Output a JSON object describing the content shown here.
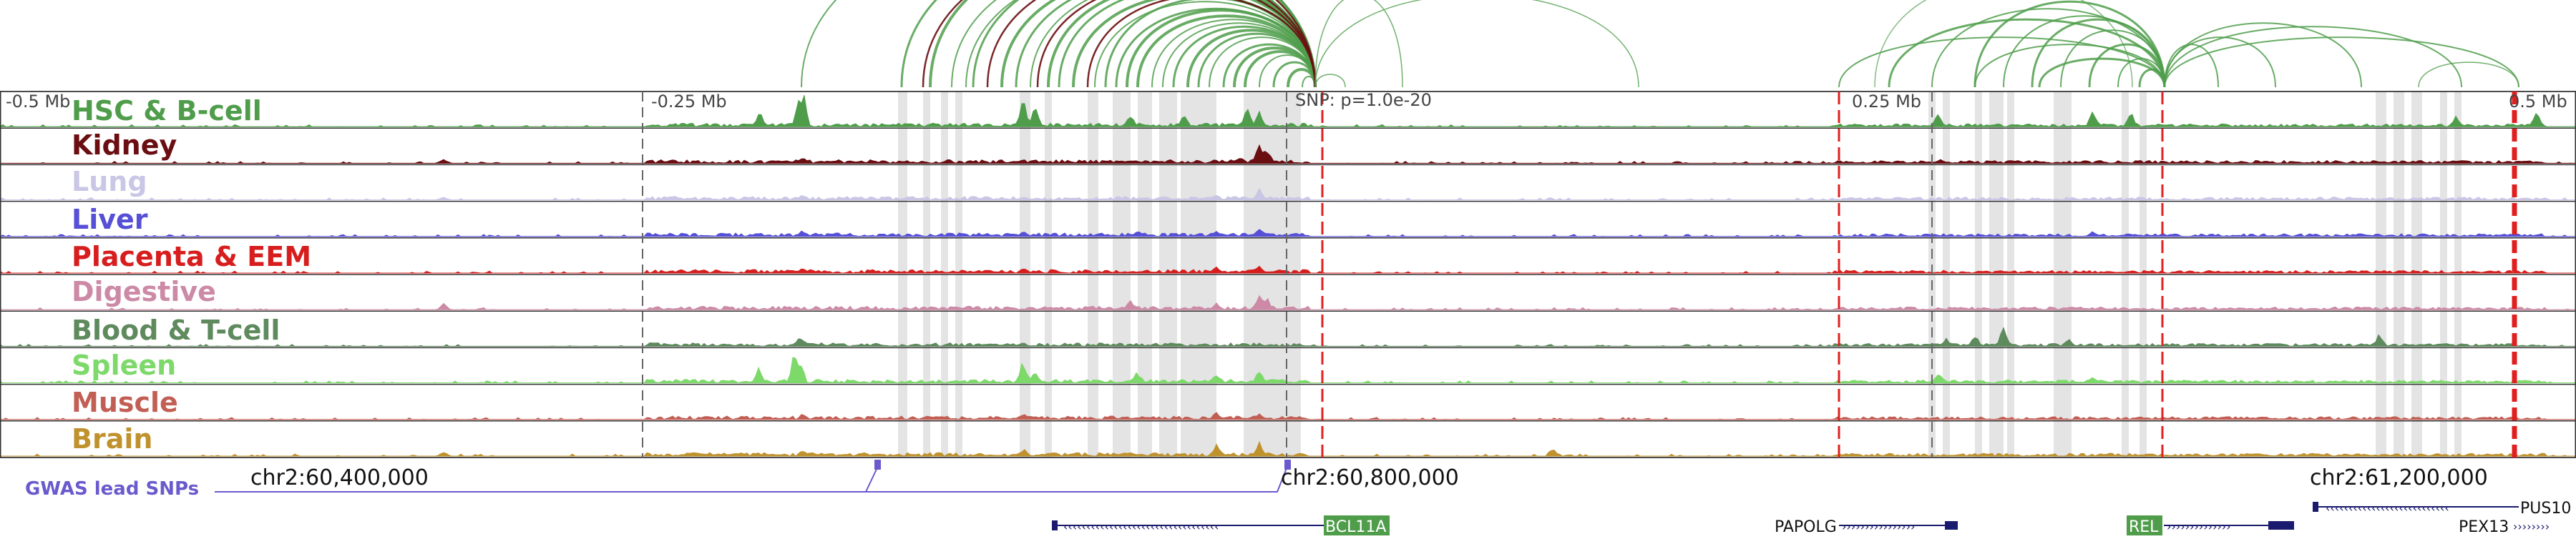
{
  "tracks": [
    {
      "label": "HSC & B-cell",
      "color": "#4f9d4b"
    },
    {
      "label": "Kidney",
      "color": "#6b0e12"
    },
    {
      "label": "Lung",
      "color": "#c9c6e6"
    },
    {
      "label": "Liver",
      "color": "#5650d6"
    },
    {
      "label": "Placenta & EEM",
      "color": "#d71d1d"
    },
    {
      "label": "Digestive",
      "color": "#cc8aa6"
    },
    {
      "label": "Blood & T-cell",
      "color": "#5e8a5e"
    },
    {
      "label": "Spleen",
      "color": "#7dd96a"
    },
    {
      "label": "Muscle",
      "color": "#c25f55"
    },
    {
      "label": "Brain",
      "color": "#c0922e"
    }
  ],
  "ruler": {
    "marks": [
      "-0.5 Mb",
      "-0.25 Mb",
      "0.25 Mb",
      "0.5 Mb"
    ],
    "snp": "SNP: p=1.0e-20"
  },
  "gwas_label": "GWAS lead SNPs",
  "coordinates": [
    "chr2:60,400,000",
    "chr2:60,800,000",
    "chr2:61,200,000"
  ],
  "genes": [
    {
      "name": "BCL11A",
      "highlighted": true,
      "strand": "-"
    },
    {
      "name": "PAPOLG",
      "highlighted": false,
      "strand": "+"
    },
    {
      "name": "REL",
      "highlighted": true,
      "strand": "+"
    },
    {
      "name": "PUS10",
      "highlighted": false,
      "strand": "-"
    },
    {
      "name": "PEX13",
      "highlighted": false,
      "strand": "+"
    }
  ],
  "colors": {
    "arc_main": "#4f9d4b",
    "arc_dark": "#6b0e12",
    "highlight": "#d8d8d8",
    "snp_line": "#e02020",
    "gwas": "#6a5acd",
    "gene": "#1a1a6e",
    "gene_label_bg": "#4f9d4b"
  }
}
